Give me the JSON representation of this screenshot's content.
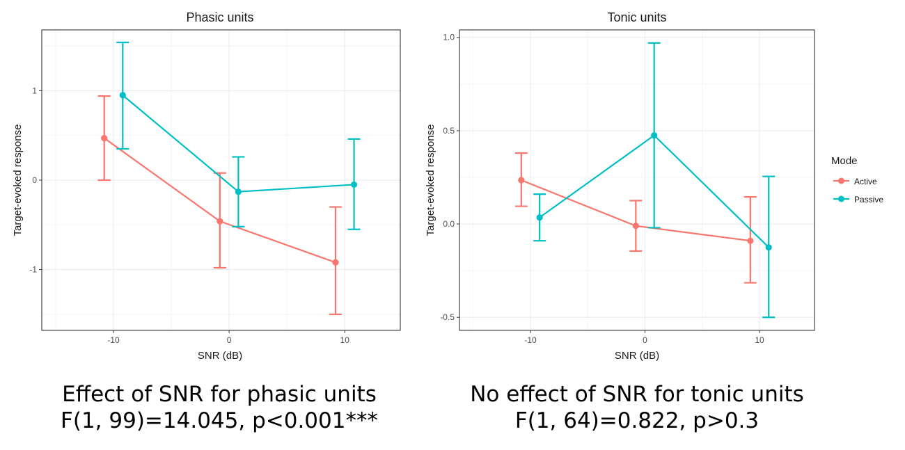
{
  "chart_data": [
    {
      "type": "line",
      "title": "Phasic units",
      "xlabel": "SNR (dB)",
      "ylabel": "Target-evoked response",
      "x_ticks": [
        -10,
        0,
        10
      ],
      "y_ticks": [
        -1,
        0,
        1
      ],
      "y_tick_labels": [
        "-1",
        "0",
        "1"
      ],
      "x_tick_labels": [
        "-10",
        "0",
        "10"
      ],
      "xlim": [
        -16.2,
        14.8
      ],
      "ylim": [
        -1.68,
        1.68
      ],
      "series": [
        {
          "name": "Active",
          "color": "#F8766D",
          "x": [
            -10.8,
            -0.8,
            9.2
          ],
          "y": [
            0.47,
            -0.46,
            -0.92
          ],
          "lower": [
            0.0,
            -0.98,
            -1.5
          ],
          "upper": [
            0.94,
            0.08,
            -0.3
          ]
        },
        {
          "name": "Passive",
          "color": "#00BFC4",
          "x": [
            -9.2,
            0.8,
            10.8
          ],
          "y": [
            0.95,
            -0.13,
            -0.05
          ],
          "lower": [
            0.35,
            -0.52,
            -0.55
          ],
          "upper": [
            1.54,
            0.26,
            0.46
          ]
        }
      ]
    },
    {
      "type": "line",
      "title": "Tonic units",
      "xlabel": "SNR (dB)",
      "ylabel": "Target-evoked response",
      "x_ticks": [
        -10,
        0,
        10
      ],
      "y_ticks": [
        -0.5,
        0,
        0.5,
        1.0
      ],
      "y_tick_labels": [
        "-0.5",
        "0.0",
        "0.5",
        "1.0"
      ],
      "x_tick_labels": [
        "-10",
        "0",
        "10"
      ],
      "xlim": [
        -16.2,
        14.8
      ],
      "ylim": [
        -0.57,
        1.04
      ],
      "series": [
        {
          "name": "Active",
          "color": "#F8766D",
          "x": [
            -10.8,
            -0.8,
            9.2
          ],
          "y": [
            0.235,
            -0.01,
            -0.09
          ],
          "lower": [
            0.095,
            -0.145,
            -0.315
          ],
          "upper": [
            0.38,
            0.125,
            0.145
          ]
        },
        {
          "name": "Passive",
          "color": "#00BFC4",
          "x": [
            -9.2,
            0.8,
            10.8
          ],
          "y": [
            0.035,
            0.475,
            -0.125
          ],
          "lower": [
            -0.09,
            -0.02,
            -0.5
          ],
          "upper": [
            0.16,
            0.97,
            0.255
          ]
        }
      ]
    }
  ],
  "legend": {
    "title": "Mode",
    "items": [
      {
        "label": "Active",
        "color": "#F8766D"
      },
      {
        "label": "Passive",
        "color": "#00BFC4"
      }
    ]
  },
  "captions": {
    "left_line1": "Effect of SNR for phasic units",
    "left_line2": "F(1, 99)=14.045, p<0.001***",
    "right_line1": "No effect of SNR for tonic units",
    "right_line2": "F(1, 64)=0.822, p>0.3"
  }
}
